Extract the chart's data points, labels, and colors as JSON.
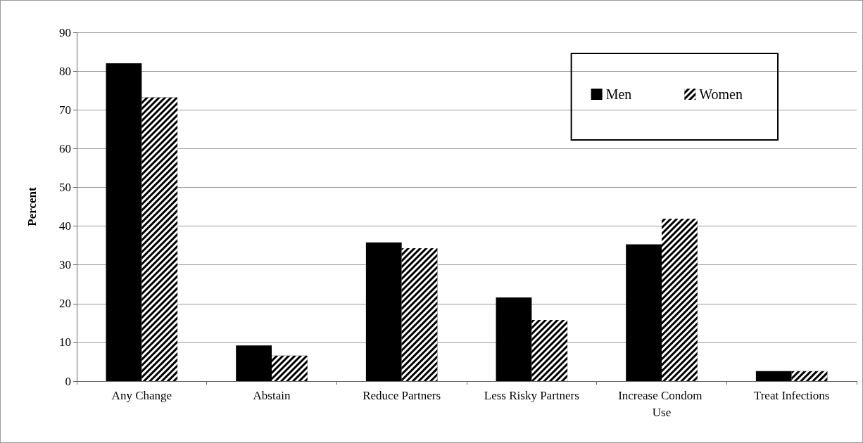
{
  "chart_data": {
    "type": "bar",
    "ylabel": "Percent",
    "categories": [
      "Any Change",
      "Abstain",
      "Reduce Partners",
      "Less Risky Partners",
      "Increase Condom Use",
      "Treat Infections"
    ],
    "series": [
      {
        "name": "Men",
        "color": "#000000",
        "values": [
          82.0,
          9.2,
          35.8,
          21.6,
          35.3,
          2.6
        ]
      },
      {
        "name": "Women",
        "color": "#000000",
        "values": [
          73.2,
          6.6,
          34.3,
          15.8,
          41.9,
          2.6
        ]
      }
    ],
    "ylim": [
      0,
      90
    ],
    "yticks": [
      0,
      10,
      20,
      30,
      40,
      50,
      60,
      70,
      80,
      90
    ],
    "grid": "y",
    "legend": "top right"
  }
}
